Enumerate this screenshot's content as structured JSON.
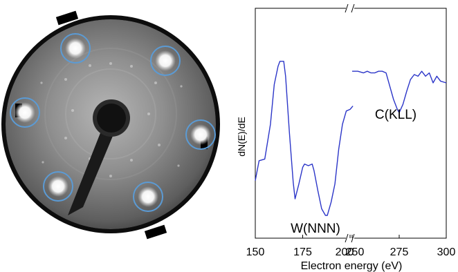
{
  "chart_data": {
    "type": "line",
    "title": "",
    "xlabel": "Electron energy (eV)",
    "ylabel": "dN(E)/dE",
    "x_axis_broken": true,
    "segments": [
      {
        "xlim": [
          150,
          200
        ],
        "ticks": [
          150,
          175,
          200
        ],
        "tick_labels": [
          "150",
          "175",
          "200"
        ]
      },
      {
        "xlim": [
          250,
          300
        ],
        "ticks": [
          250,
          275,
          300
        ],
        "tick_labels": [
          "250",
          "275",
          "300"
        ]
      }
    ],
    "y_tick_labels": false,
    "grid": false,
    "series": [
      {
        "color": "#2b35c8",
        "segment": 0,
        "x": [
          150,
          151,
          152,
          155,
          158,
          160,
          162,
          163,
          165,
          166,
          168,
          170,
          171,
          173,
          175,
          176,
          178,
          180,
          181,
          183,
          185,
          187,
          188,
          190,
          192,
          194,
          196,
          198,
          200,
          201.5
        ],
        "y": [
          0.21,
          0.27,
          0.33,
          0.34,
          0.55,
          0.79,
          0.9,
          0.93,
          0.93,
          0.84,
          0.5,
          0.2,
          0.1,
          0.19,
          0.29,
          0.31,
          0.3,
          0.31,
          0.27,
          0.15,
          0.04,
          0.0,
          0.0,
          0.08,
          0.19,
          0.4,
          0.55,
          0.63,
          0.64,
          0.66
        ]
      },
      {
        "color": "#2b35c8",
        "segment": 1,
        "x": [
          250,
          253,
          256,
          258,
          260,
          262,
          264,
          266,
          268,
          270,
          272,
          274,
          275,
          277,
          279,
          281,
          283,
          285,
          287,
          289,
          291,
          293,
          295,
          297,
          300
        ],
        "y": [
          0.87,
          0.87,
          0.86,
          0.87,
          0.86,
          0.86,
          0.87,
          0.87,
          0.86,
          0.78,
          0.7,
          0.64,
          0.62,
          0.67,
          0.75,
          0.82,
          0.85,
          0.84,
          0.87,
          0.84,
          0.86,
          0.8,
          0.84,
          0.81,
          0.8
        ]
      }
    ],
    "annotations": [
      {
        "text": "W(NNN)",
        "x": 184,
        "y": -0.05
      },
      {
        "text": "C(KLL)",
        "x": 277,
        "y": 0.57
      }
    ]
  },
  "image": {
    "description_label": "LEED pattern",
    "highlight_color": "#5b9bd5",
    "highlighted_spots": 6
  }
}
